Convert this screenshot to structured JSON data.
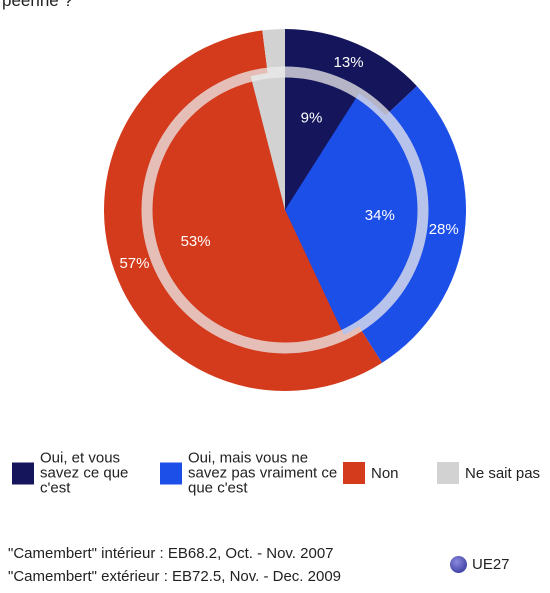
{
  "chart_data": {
    "type": "pie",
    "title": "péenne ?",
    "categories": [
      "Oui, et vous savez ce que c'est",
      "Oui, mais vous ne savez pas vraiment ce que c'est",
      "Non",
      "Ne sait pas"
    ],
    "colors": [
      "#15155c",
      "#1c4ee8",
      "#d43a1c",
      "#d2d2d2"
    ],
    "series": [
      {
        "values": [
          9,
          34,
          53,
          4
        ],
        "value_labels": [
          "9%",
          "34%",
          "53%",
          null
        ]
      },
      {
        "values": [
          13,
          28,
          57,
          2
        ],
        "value_labels": [
          "13%",
          "28%",
          "57%",
          null
        ]
      }
    ],
    "notes": [
      "\"Camembert\" intérieur : EB68.2, Oct. - Nov. 2007",
      "\"Camembert\" extérieur : EB72.5, Nov. - Dec. 2009"
    ],
    "region": "UE27"
  }
}
